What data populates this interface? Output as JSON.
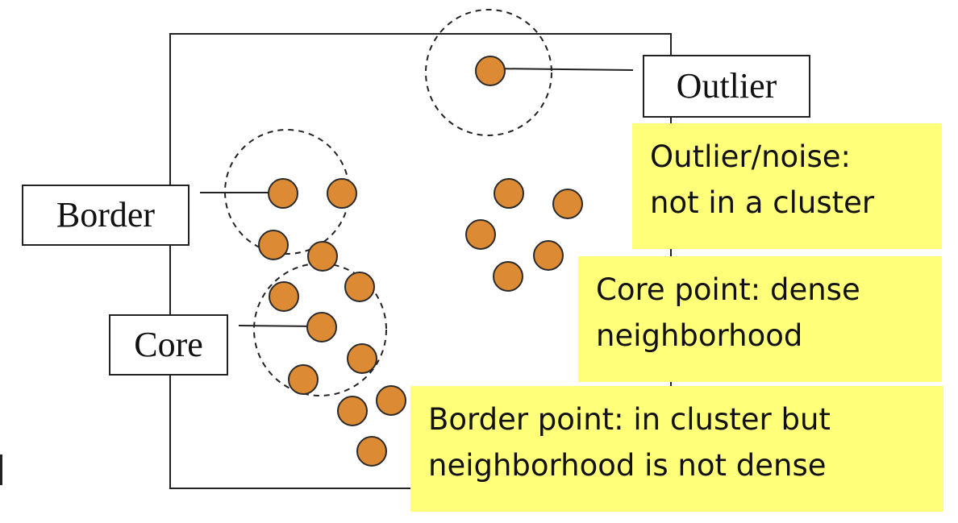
{
  "labels": {
    "outlier": "Outlier",
    "border": "Border",
    "core": "Core"
  },
  "notes": {
    "outlier": [
      "Outlier/noise:",
      "not in a cluster"
    ],
    "core": [
      "Core point: dense",
      "neighborhood"
    ],
    "border": [
      "Border point: in cluster but",
      "neighborhood is not dense"
    ]
  },
  "colors": {
    "point_fill": "#dd8a35",
    "point_stroke": "#2b2b2b",
    "note_background": "#ffff7a"
  }
}
